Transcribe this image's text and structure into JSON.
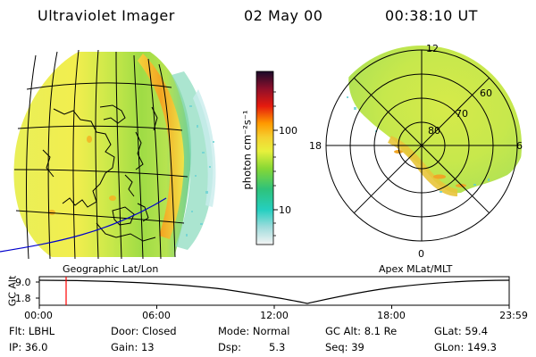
{
  "header": {
    "instrument": "Ultraviolet Imager",
    "date": "02 May 00",
    "time": "00:38:10 UT"
  },
  "colorbar": {
    "label": "photon cm⁻²s⁻¹",
    "tick_100": "100",
    "tick_10": "10",
    "scale": "log",
    "min": 2.5,
    "max": 600,
    "colors": [
      "#f4f4f4",
      "#9fdcdc",
      "#25cfc0",
      "#2ec27a",
      "#87d835",
      "#e8f03c",
      "#f5d030",
      "#ff9a00",
      "#e51a0e",
      "#8e0f2a",
      "#2a0a3a"
    ]
  },
  "left_map": {
    "caption": "Geographic Lat/Lon"
  },
  "right_map": {
    "caption": "Apex MLat/MLT",
    "lat_labels": [
      "80",
      "70",
      "60"
    ],
    "mlt_labels": {
      "top": "12",
      "left": "18",
      "right": "6",
      "bottom": "0"
    }
  },
  "timeline": {
    "ylabel": "GC Alt",
    "y_ticks": [
      "9.0",
      "1.8"
    ],
    "x_ticks": [
      "00:00",
      "06:00",
      "12:00",
      "18:00",
      "23:59"
    ],
    "marker_time": "00:38"
  },
  "info": {
    "flt": "Flt: LBHL",
    "ip": "IP: 36.0",
    "door": "Door: Closed",
    "gain": "Gain: 13",
    "mode": "Mode: Normal",
    "dsp_label": "Dsp:",
    "dsp_value": "5.3",
    "gc_alt": "GC Alt: 8.1 Re",
    "seq": "Seq: 39",
    "glat": "GLat: 59.4",
    "glon": "GLon: 149.3"
  },
  "colors": {
    "marker": "#ff0000",
    "coast_line": "#000000",
    "orbit_line": "#0000cc"
  }
}
